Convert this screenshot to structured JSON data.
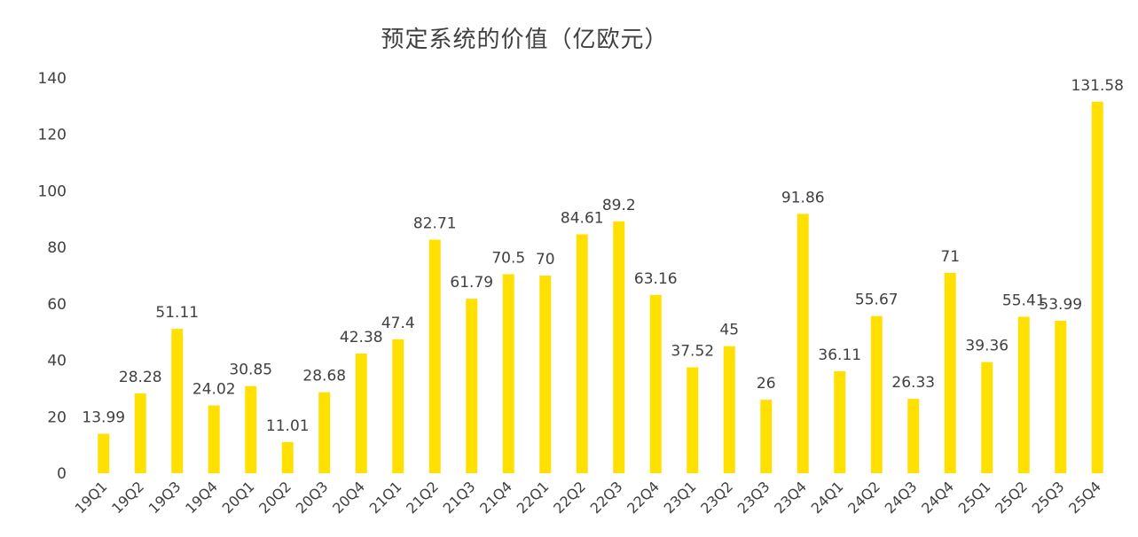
{
  "chart_data": {
    "type": "bar",
    "title": "预定系统的价值（亿欧元）",
    "xlabel": "",
    "ylabel": "",
    "ylim": [
      0,
      140
    ],
    "yticks": [
      0,
      20,
      40,
      60,
      80,
      100,
      120,
      140
    ],
    "grid": false,
    "bar_color": "#FFE000",
    "categories": [
      "19Q1",
      "19Q2",
      "19Q3",
      "19Q4",
      "20Q1",
      "20Q2",
      "20Q3",
      "20Q4",
      "21Q1",
      "21Q2",
      "21Q3",
      "21Q4",
      "22Q1",
      "22Q2",
      "22Q3",
      "22Q4",
      "23Q1",
      "23Q2",
      "23Q3",
      "23Q4",
      "24Q1",
      "24Q2",
      "24Q3",
      "24Q4",
      "25Q1",
      "25Q2",
      "25Q3",
      "25Q4"
    ],
    "values": [
      13.99,
      28.28,
      51.11,
      24.02,
      30.85,
      11.01,
      28.68,
      42.38,
      47.4,
      82.71,
      61.79,
      70.5,
      70,
      84.61,
      89.2,
      63.16,
      37.52,
      45,
      26,
      91.86,
      36.11,
      55.67,
      26.33,
      71,
      39.36,
      55.41,
      53.99,
      131.58
    ]
  }
}
